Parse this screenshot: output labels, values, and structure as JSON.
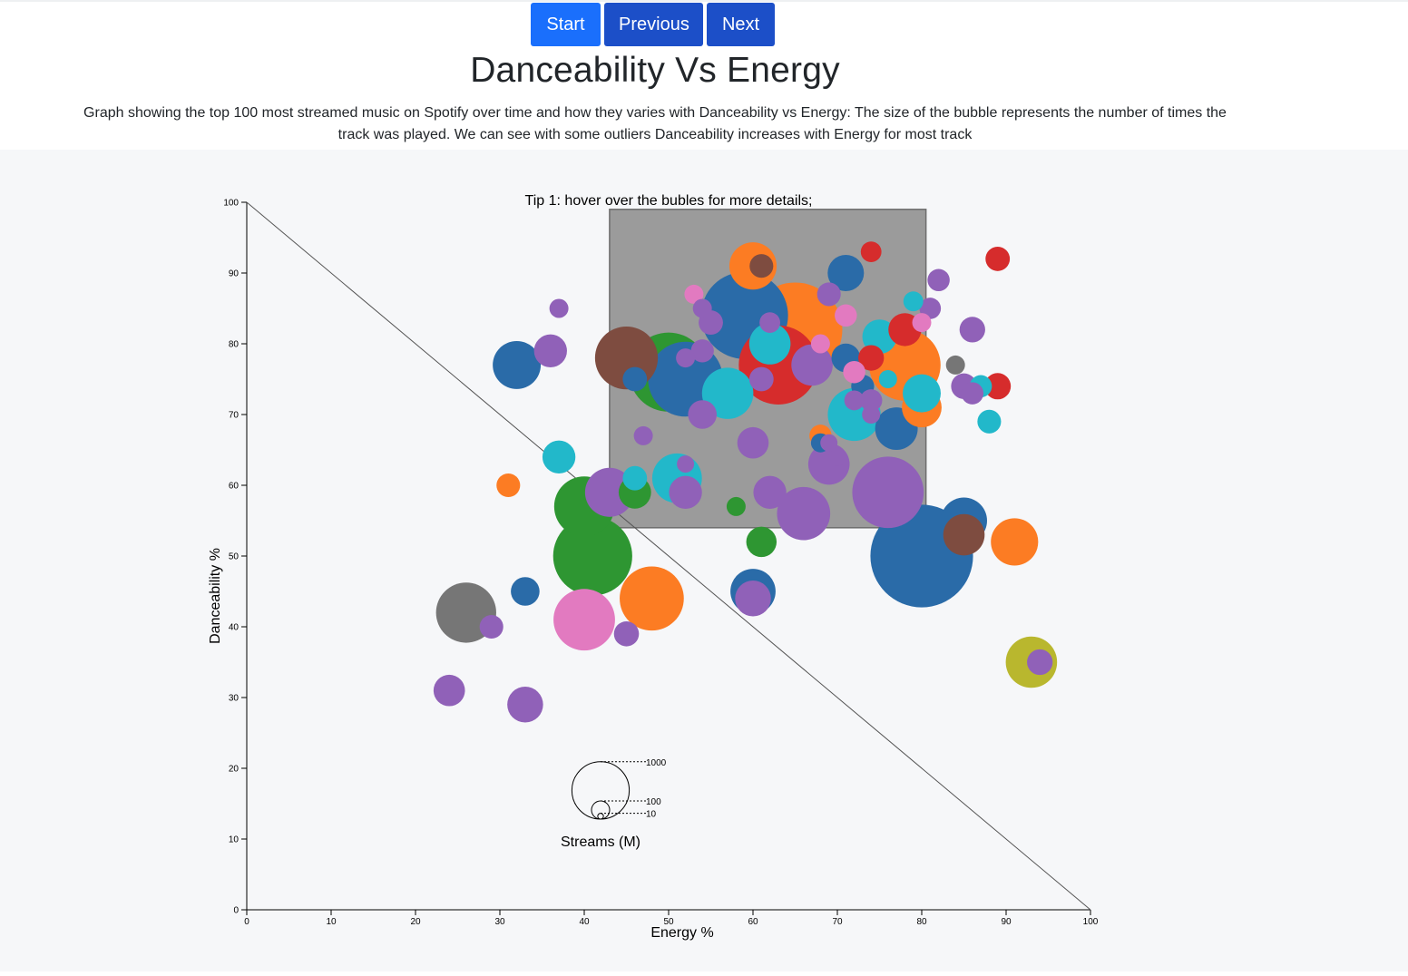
{
  "nav": {
    "start": "Start",
    "previous": "Previous",
    "next": "Next"
  },
  "page": {
    "title": "Danceability Vs Energy",
    "description": "Graph showing the top 100 most streamed music on Spotify over time and how they varies with Danceability vs Energy: The size of the bubble represents the number of times the track was played. We can see with some outliers Danceability increases with Energy for most track"
  },
  "chart_data": {
    "type": "scatter",
    "variant": "bubble",
    "title": "",
    "annotation": "Tip 1: hover over the bubles for more details;",
    "xlabel": "Energy %",
    "ylabel": "Danceability %",
    "xlim": [
      0,
      100
    ],
    "ylim": [
      0,
      100
    ],
    "xticks": [
      0,
      10,
      20,
      30,
      40,
      50,
      60,
      70,
      80,
      90,
      100
    ],
    "yticks": [
      0,
      10,
      20,
      30,
      40,
      50,
      60,
      70,
      80,
      90,
      100
    ],
    "diagonal_line": {
      "from": [
        0,
        100
      ],
      "to": [
        100,
        0
      ]
    },
    "highlight_region": {
      "x": [
        43,
        80.5
      ],
      "y": [
        54,
        99
      ],
      "color": "#9b9b9b"
    },
    "size_legend": {
      "title": "Streams (M)",
      "values": [
        1000,
        100,
        10
      ]
    },
    "colors": {
      "blue": "#2a6ba8",
      "orange": "#fc7c23",
      "green": "#2e9632",
      "red": "#d62c2c",
      "purple": "#9061b8",
      "brown": "#7e4c40",
      "pink": "#e27ac0",
      "gray": "#767676",
      "olive": "#b9b72e",
      "cyan": "#22b8ca"
    },
    "points": [
      {
        "x": 80,
        "y": 50,
        "streams": 3200,
        "color": "blue"
      },
      {
        "x": 65,
        "y": 82,
        "streams": 2700,
        "color": "orange"
      },
      {
        "x": 59,
        "y": 84,
        "streams": 2300,
        "color": "blue"
      },
      {
        "x": 63,
        "y": 77,
        "streams": 1900,
        "color": "red"
      },
      {
        "x": 41,
        "y": 50,
        "streams": 1900,
        "color": "green"
      },
      {
        "x": 50,
        "y": 76,
        "streams": 1900,
        "color": "green"
      },
      {
        "x": 52,
        "y": 75,
        "streams": 1700,
        "color": "blue"
      },
      {
        "x": 78,
        "y": 77,
        "streams": 1550,
        "color": "orange"
      },
      {
        "x": 76,
        "y": 59,
        "streams": 1550,
        "color": "purple"
      },
      {
        "x": 40,
        "y": 57,
        "streams": 1100,
        "color": "green"
      },
      {
        "x": 40,
        "y": 41,
        "streams": 1150,
        "color": "pink"
      },
      {
        "x": 48,
        "y": 44,
        "streams": 1250,
        "color": "orange"
      },
      {
        "x": 45,
        "y": 78,
        "streams": 1200,
        "color": "brown"
      },
      {
        "x": 26,
        "y": 42,
        "streams": 1100,
        "color": "gray"
      },
      {
        "x": 72,
        "y": 70,
        "streams": 850,
        "color": "cyan"
      },
      {
        "x": 57,
        "y": 73,
        "streams": 800,
        "color": "cyan"
      },
      {
        "x": 51,
        "y": 61,
        "streams": 750,
        "color": "cyan"
      },
      {
        "x": 66,
        "y": 56,
        "streams": 860,
        "color": "purple"
      },
      {
        "x": 43,
        "y": 59,
        "streams": 730,
        "color": "purple"
      },
      {
        "x": 60,
        "y": 91,
        "streams": 680,
        "color": "orange"
      },
      {
        "x": 32,
        "y": 77,
        "streams": 700,
        "color": "blue"
      },
      {
        "x": 85,
        "y": 55,
        "streams": 650,
        "color": "blue"
      },
      {
        "x": 91,
        "y": 52,
        "streams": 680,
        "color": "orange"
      },
      {
        "x": 93,
        "y": 35,
        "streams": 800,
        "color": "olive"
      },
      {
        "x": 60,
        "y": 45,
        "streams": 620,
        "color": "blue"
      },
      {
        "x": 77,
        "y": 68,
        "streams": 550,
        "color": "blue"
      },
      {
        "x": 80,
        "y": 71,
        "streams": 480,
        "color": "orange"
      },
      {
        "x": 69,
        "y": 63,
        "streams": 520,
        "color": "purple"
      },
      {
        "x": 67,
        "y": 77,
        "streams": 520,
        "color": "purple"
      },
      {
        "x": 62,
        "y": 80,
        "streams": 520,
        "color": "cyan"
      },
      {
        "x": 85,
        "y": 53,
        "streams": 520,
        "color": "brown"
      },
      {
        "x": 80,
        "y": 73,
        "streams": 440,
        "color": "cyan"
      },
      {
        "x": 75,
        "y": 81,
        "streams": 360,
        "color": "cyan"
      },
      {
        "x": 78,
        "y": 82,
        "streams": 330,
        "color": "red"
      },
      {
        "x": 36,
        "y": 79,
        "streams": 330,
        "color": "purple"
      },
      {
        "x": 37,
        "y": 64,
        "streams": 330,
        "color": "cyan"
      },
      {
        "x": 33,
        "y": 29,
        "streams": 390,
        "color": "purple"
      },
      {
        "x": 24,
        "y": 31,
        "streams": 300,
        "color": "purple"
      },
      {
        "x": 33,
        "y": 45,
        "streams": 250,
        "color": "blue"
      },
      {
        "x": 71,
        "y": 90,
        "streams": 400,
        "color": "blue"
      },
      {
        "x": 60,
        "y": 66,
        "streams": 300,
        "color": "purple"
      },
      {
        "x": 62,
        "y": 59,
        "streams": 330,
        "color": "purple"
      },
      {
        "x": 61,
        "y": 52,
        "streams": 280,
        "color": "green"
      },
      {
        "x": 60,
        "y": 44,
        "streams": 390,
        "color": "purple"
      },
      {
        "x": 46,
        "y": 59,
        "streams": 320,
        "color": "green"
      },
      {
        "x": 52,
        "y": 59,
        "streams": 330,
        "color": "purple"
      },
      {
        "x": 54,
        "y": 70,
        "streams": 250,
        "color": "purple"
      },
      {
        "x": 86,
        "y": 82,
        "streams": 200,
        "color": "purple"
      },
      {
        "x": 89,
        "y": 92,
        "streams": 180,
        "color": "red"
      },
      {
        "x": 89,
        "y": 74,
        "streams": 210,
        "color": "red"
      },
      {
        "x": 88,
        "y": 69,
        "streams": 170,
        "color": "cyan"
      },
      {
        "x": 94,
        "y": 35,
        "streams": 200,
        "color": "purple"
      },
      {
        "x": 45,
        "y": 39,
        "streams": 190,
        "color": "purple"
      },
      {
        "x": 29,
        "y": 40,
        "streams": 170,
        "color": "purple"
      },
      {
        "x": 31,
        "y": 60,
        "streams": 170,
        "color": "orange"
      },
      {
        "x": 37,
        "y": 85,
        "streams": 110,
        "color": "purple"
      },
      {
        "x": 58,
        "y": 57,
        "streams": 110,
        "color": "green"
      },
      {
        "x": 47,
        "y": 67,
        "streams": 110,
        "color": "purple"
      },
      {
        "x": 74,
        "y": 93,
        "streams": 130,
        "color": "red"
      },
      {
        "x": 82,
        "y": 89,
        "streams": 150,
        "color": "purple"
      },
      {
        "x": 81,
        "y": 85,
        "streams": 140,
        "color": "purple"
      },
      {
        "x": 84,
        "y": 77,
        "streams": 110,
        "color": "gray"
      },
      {
        "x": 85,
        "y": 74,
        "streams": 200,
        "color": "purple"
      },
      {
        "x": 87,
        "y": 74,
        "streams": 150,
        "color": "cyan"
      },
      {
        "x": 86,
        "y": 73,
        "streams": 150,
        "color": "purple"
      },
      {
        "x": 61,
        "y": 91,
        "streams": 170,
        "color": "brown"
      },
      {
        "x": 69,
        "y": 87,
        "streams": 170,
        "color": "purple"
      },
      {
        "x": 71,
        "y": 84,
        "streams": 150,
        "color": "pink"
      },
      {
        "x": 74,
        "y": 78,
        "streams": 200,
        "color": "red"
      },
      {
        "x": 72,
        "y": 76,
        "streams": 150,
        "color": "pink"
      },
      {
        "x": 71,
        "y": 78,
        "streams": 250,
        "color": "blue"
      },
      {
        "x": 68,
        "y": 80,
        "streams": 110,
        "color": "pink"
      },
      {
        "x": 61,
        "y": 75,
        "streams": 180,
        "color": "purple"
      },
      {
        "x": 53,
        "y": 87,
        "streams": 110,
        "color": "pink"
      },
      {
        "x": 54,
        "y": 85,
        "streams": 110,
        "color": "purple"
      },
      {
        "x": 55,
        "y": 83,
        "streams": 180,
        "color": "purple"
      },
      {
        "x": 62,
        "y": 83,
        "streams": 130,
        "color": "purple"
      },
      {
        "x": 54,
        "y": 79,
        "streams": 160,
        "color": "purple"
      },
      {
        "x": 52,
        "y": 78,
        "streams": 110,
        "color": "purple"
      },
      {
        "x": 46,
        "y": 75,
        "streams": 180,
        "color": "blue"
      },
      {
        "x": 76,
        "y": 75,
        "streams": 100,
        "color": "cyan"
      },
      {
        "x": 74,
        "y": 72,
        "streams": 150,
        "color": "purple"
      },
      {
        "x": 73,
        "y": 74,
        "streams": 160,
        "color": "blue"
      },
      {
        "x": 72,
        "y": 72,
        "streams": 120,
        "color": "purple"
      },
      {
        "x": 74,
        "y": 70,
        "streams": 100,
        "color": "purple"
      },
      {
        "x": 80,
        "y": 83,
        "streams": 110,
        "color": "pink"
      },
      {
        "x": 79,
        "y": 86,
        "streams": 120,
        "color": "cyan"
      },
      {
        "x": 68,
        "y": 67,
        "streams": 150,
        "color": "orange"
      },
      {
        "x": 68,
        "y": 66,
        "streams": 110,
        "color": "blue"
      },
      {
        "x": 69,
        "y": 66,
        "streams": 90,
        "color": "purple"
      },
      {
        "x": 70,
        "y": 64,
        "streams": 100,
        "color": "purple"
      },
      {
        "x": 46,
        "y": 61,
        "streams": 180,
        "color": "cyan"
      },
      {
        "x": 52,
        "y": 63,
        "streams": 90,
        "color": "purple"
      }
    ]
  }
}
